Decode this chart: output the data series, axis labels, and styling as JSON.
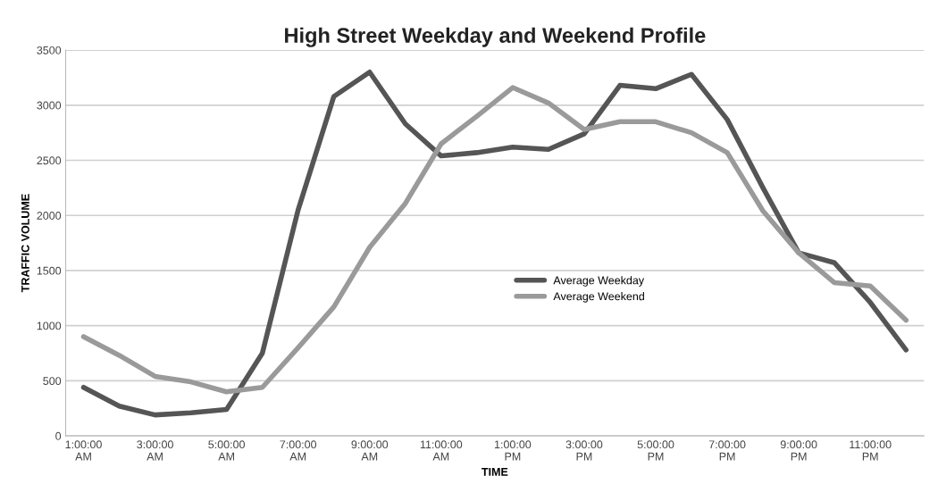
{
  "chart_data": {
    "type": "line",
    "title": "High Street Weekday and Weekend Profile",
    "xlabel": "TIME",
    "ylabel": "TRAFFIC VOLUME",
    "categories": [
      "1:00:00\nAM",
      null,
      "3:00:00\nAM",
      null,
      "5:00:00\nAM",
      null,
      "7:00:00\nAM",
      null,
      "9:00:00\nAM",
      null,
      "11:00:00\nAM",
      null,
      "1:00:00\nPM",
      null,
      "3:00:00\nPM",
      null,
      "5:00:00\nPM",
      null,
      "7:00:00\nPM",
      null,
      "9:00:00\nPM",
      null,
      "11:00:00\nPM",
      null
    ],
    "series": [
      {
        "name": "Average Weekday",
        "color": "#555555",
        "values": [
          440,
          270,
          190,
          210,
          240,
          750,
          2050,
          3080,
          3300,
          2830,
          2540,
          2570,
          2620,
          2600,
          2740,
          3180,
          3150,
          3280,
          2870,
          2250,
          1660,
          1570,
          1210,
          780
        ]
      },
      {
        "name": "Average Weekend",
        "color": "#9a9a9a",
        "values": [
          900,
          730,
          540,
          490,
          400,
          440,
          800,
          1170,
          1710,
          2110,
          2650,
          2900,
          3160,
          3020,
          2780,
          2850,
          2850,
          2750,
          2570,
          2040,
          1660,
          1390,
          1360,
          1050
        ]
      }
    ],
    "ylim": [
      0,
      3500
    ],
    "yticks": [
      0,
      500,
      1000,
      1500,
      2000,
      2500,
      3000,
      3500
    ],
    "grid": "y",
    "legend": "center",
    "line_style": "solid",
    "marker": "none"
  }
}
